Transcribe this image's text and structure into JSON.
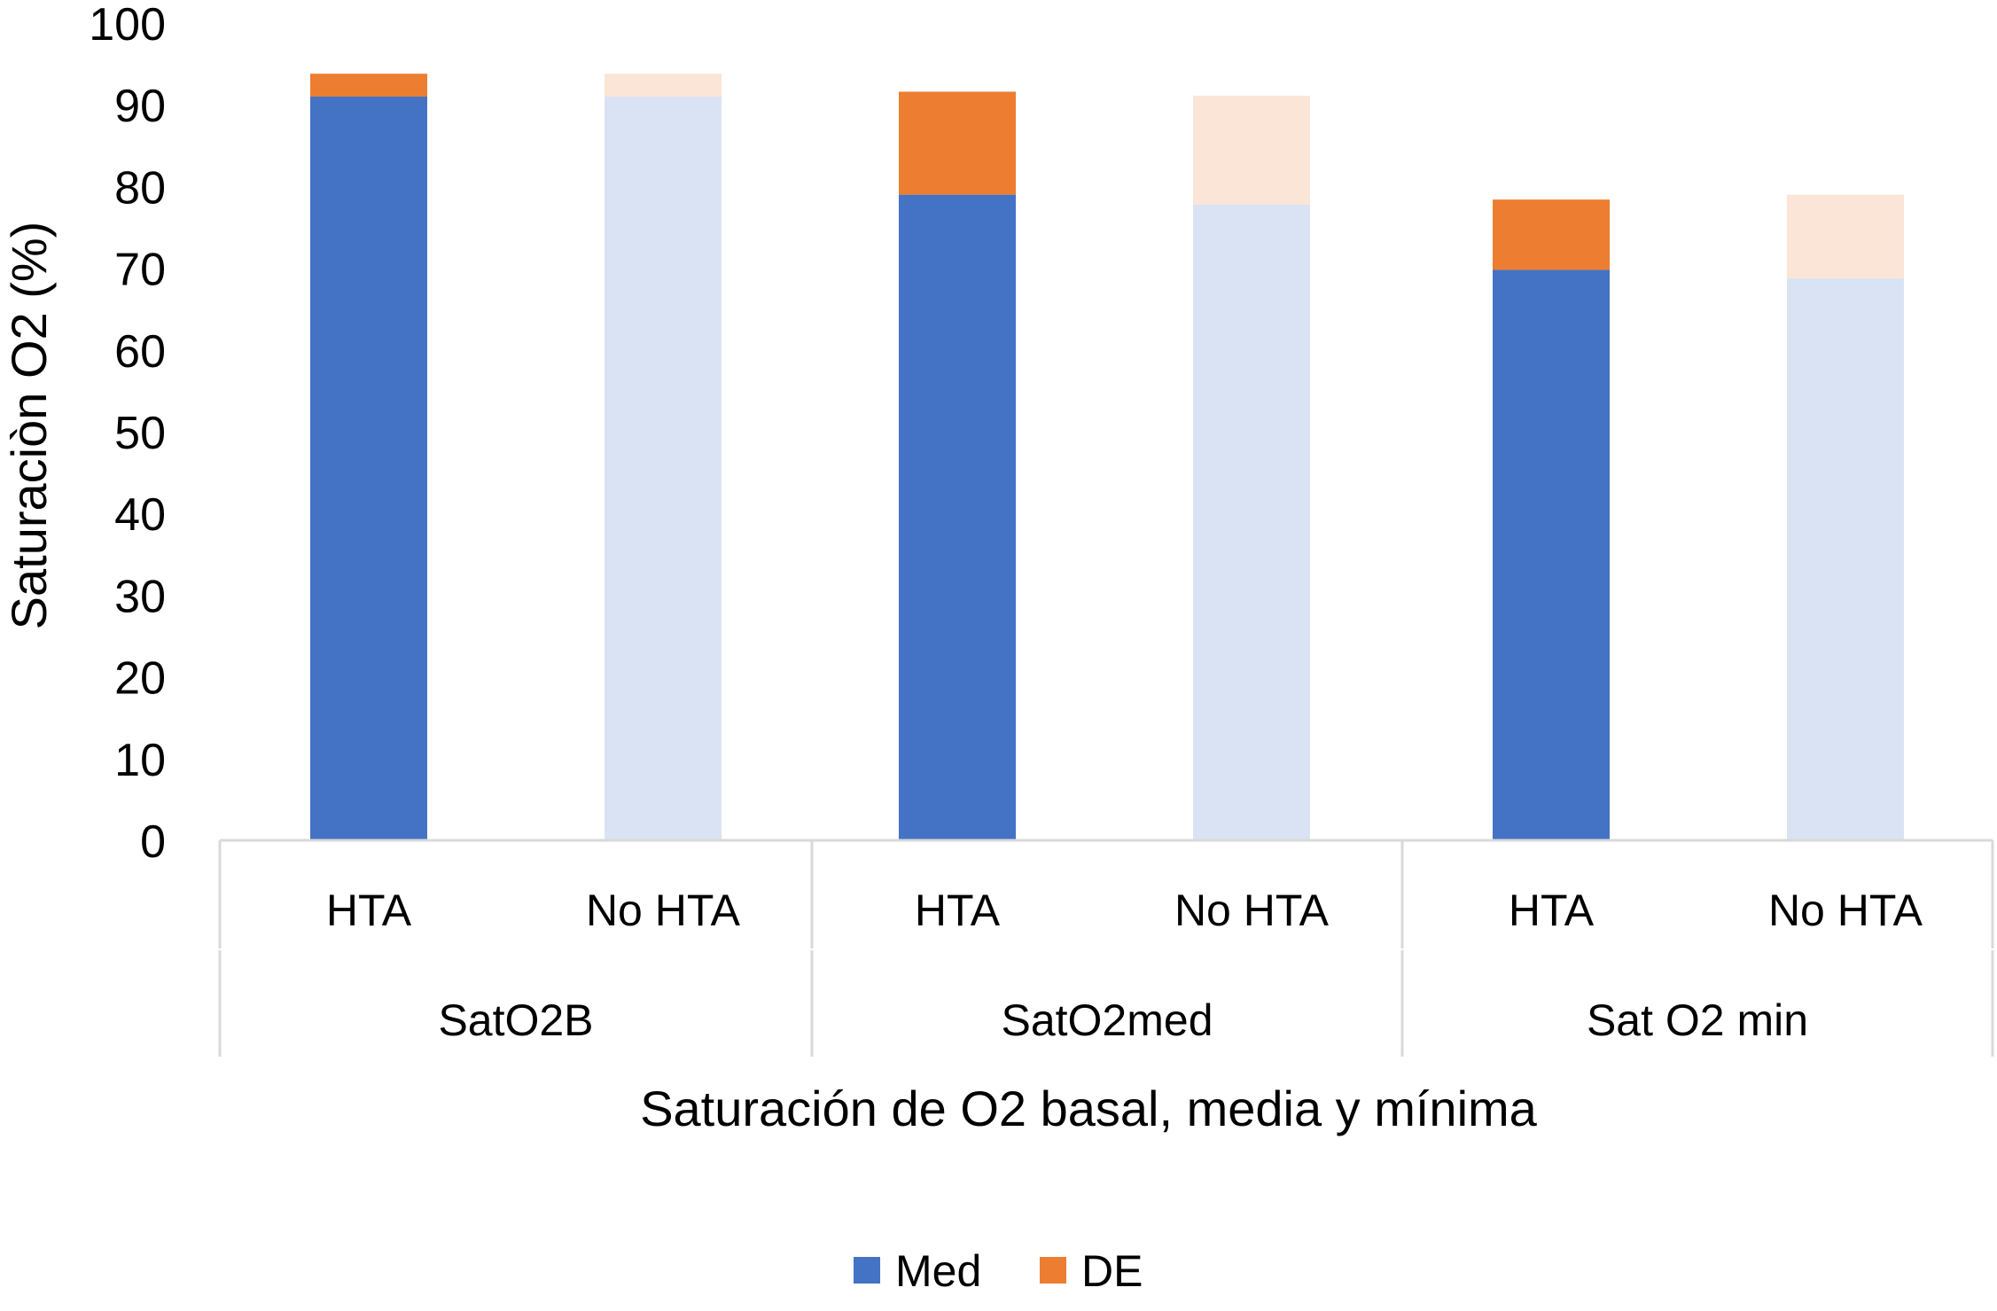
{
  "chart_data": {
    "type": "bar",
    "stacked": true,
    "title": "",
    "ylabel": "Saturaciòn O2 (%)",
    "xlabel": "Saturación de O2 basal, media y mínima",
    "ylim": [
      0,
      100
    ],
    "yticks": [
      0,
      10,
      20,
      30,
      40,
      50,
      60,
      70,
      80,
      90,
      100
    ],
    "groups": [
      "SatO2B",
      "SatO2med",
      "Sat O2 min"
    ],
    "categories": [
      "HTA",
      "No HTA",
      "HTA",
      "No HTA",
      "HTA",
      "No HTA"
    ],
    "series": [
      {
        "name": "Med",
        "values": [
          91.0,
          91.0,
          79.0,
          77.8,
          69.8,
          68.8
        ]
      },
      {
        "name": "DE",
        "values": [
          2.8,
          2.8,
          12.6,
          13.3,
          8.6,
          10.2
        ]
      }
    ],
    "colors": {
      "Med": "#4472c4",
      "DE": "#ed7d31",
      "Med_faded": "#dae3f3",
      "DE_faded": "#fbe5d6",
      "axis": "#d9d9d9"
    },
    "highlighted_bars": [
      true,
      false,
      true,
      false,
      true,
      false
    ],
    "legend_position": "bottom"
  }
}
